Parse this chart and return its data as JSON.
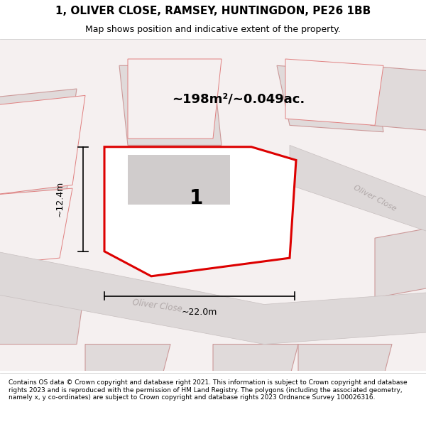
{
  "title": "1, OLIVER CLOSE, RAMSEY, HUNTINGDON, PE26 1BB",
  "subtitle": "Map shows position and indicative extent of the property.",
  "footer": "Contains OS data © Crown copyright and database right 2021. This information is subject to Crown copyright and database rights 2023 and is reproduced with the permission of HM Land Registry. The polygons (including the associated geometry, namely x, y co-ordinates) are subject to Crown copyright and database rights 2023 Ordnance Survey 100026316.",
  "area_text": "~198m²/~0.049ac.",
  "plot_number": "1",
  "dim_width": "~22.0m",
  "dim_height": "~12.4m",
  "road_label": "Oliver Close",
  "road_label2": "Oliver Close",
  "map_bg": "#f5f0f0",
  "plot_outline": "#dd0000",
  "road_color": "#ddd8d8",
  "road_border": "#c8c0c0",
  "neighbor_fill": "#e0dada",
  "neighbor_line": "#cc9999",
  "cadastral_fill": "#f5f0f0",
  "cadastral_line": "#e08080",
  "road_text_color": "#b0a8a8",
  "building_fill": "#d0cccc"
}
